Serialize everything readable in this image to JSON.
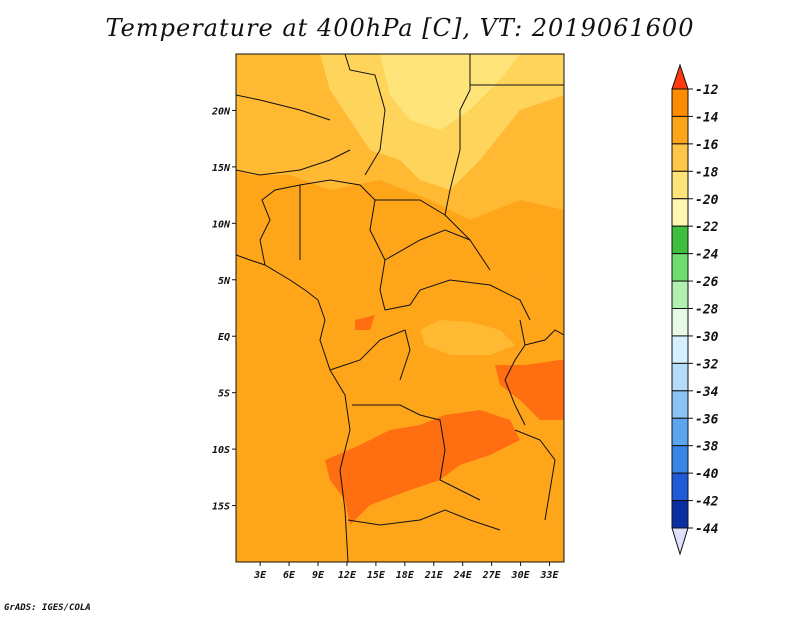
{
  "title": "Temperature at 400hPa [C], VT: 2019061600",
  "credit": "GrADS: IGES/COLA",
  "map": {
    "x_ticks": [
      "3E",
      "6E",
      "9E",
      "12E",
      "15E",
      "18E",
      "21E",
      "24E",
      "27E",
      "30E",
      "33E"
    ],
    "x_tick_values": [
      3,
      6,
      9,
      12,
      15,
      18,
      21,
      24,
      27,
      30,
      33
    ],
    "y_ticks": [
      "20N",
      "15N",
      "10N",
      "5N",
      "EQ",
      "5S",
      "10S",
      "15S"
    ],
    "y_tick_values": [
      20,
      15,
      10,
      5,
      0,
      -5,
      -10,
      -15
    ],
    "lon_range": [
      0.5,
      34.5
    ],
    "lat_range": [
      -20,
      25
    ]
  },
  "colorbar": {
    "labels": [
      "-12",
      "-14",
      "-16",
      "-18",
      "-20",
      "-22",
      "-24",
      "-26",
      "-28",
      "-30",
      "-32",
      "-34",
      "-36",
      "-38",
      "-40",
      "-42",
      "-44"
    ],
    "colors": [
      "#ff5a1a",
      "#ff8c00",
      "#ffa51a",
      "#ffc64a",
      "#ffe47a",
      "#fff6b0",
      "#3dbf3d",
      "#6fdc6f",
      "#b2f0b2",
      "#e6fae6",
      "#d7f0ff",
      "#b5dcfa",
      "#8cc3f2",
      "#5aa5ec",
      "#3a86e6",
      "#1f5ad8",
      "#0a2fa0",
      "#101070"
    ],
    "top_color": "#ff3a10",
    "bottom_color": "#e0e0ff"
  }
}
